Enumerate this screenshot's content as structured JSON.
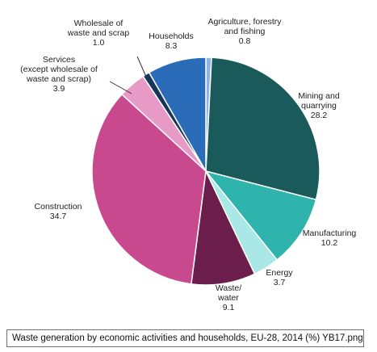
{
  "chart_data": {
    "type": "pie",
    "slices": [
      {
        "label_lines": [
          "Agriculture, forestry",
          "and fishing"
        ],
        "value_text": "0.8",
        "value": 0.8,
        "color": "#8fb4e3"
      },
      {
        "label_lines": [
          "Mining and",
          "quarrying"
        ],
        "value_text": "28.2",
        "value": 28.2,
        "color": "#1b5a5a"
      },
      {
        "label_lines": [
          "Manufacturing"
        ],
        "value_text": "10.2",
        "value": 10.2,
        "color": "#2fb3ad"
      },
      {
        "label_lines": [
          "Energy"
        ],
        "value_text": "3.7",
        "value": 3.7,
        "color": "#a9e8e6"
      },
      {
        "label_lines": [
          "Waste/",
          "water"
        ],
        "value_text": "9.1",
        "value": 9.1,
        "color": "#6b1d4c"
      },
      {
        "label_lines": [
          "Construction"
        ],
        "value_text": "34.7",
        "value": 34.7,
        "color": "#c9498e"
      },
      {
        "label_lines": [
          "Services",
          "(except wholesale of",
          "waste and scrap)"
        ],
        "value_text": "3.9",
        "value": 3.9,
        "color": "#e89ac6"
      },
      {
        "label_lines": [
          "Wholesale of",
          "waste and scrap"
        ],
        "value_text": "1.0",
        "value": 1.0,
        "color": "#16365c"
      },
      {
        "label_lines": [
          "Households"
        ],
        "value_text": "8.3",
        "value": 8.3,
        "color": "#2a6cb8"
      }
    ],
    "legend": "none",
    "grid": false
  },
  "caption": "Waste generation by economic activities and households, EU-28, 2014 (%) YB17.png"
}
